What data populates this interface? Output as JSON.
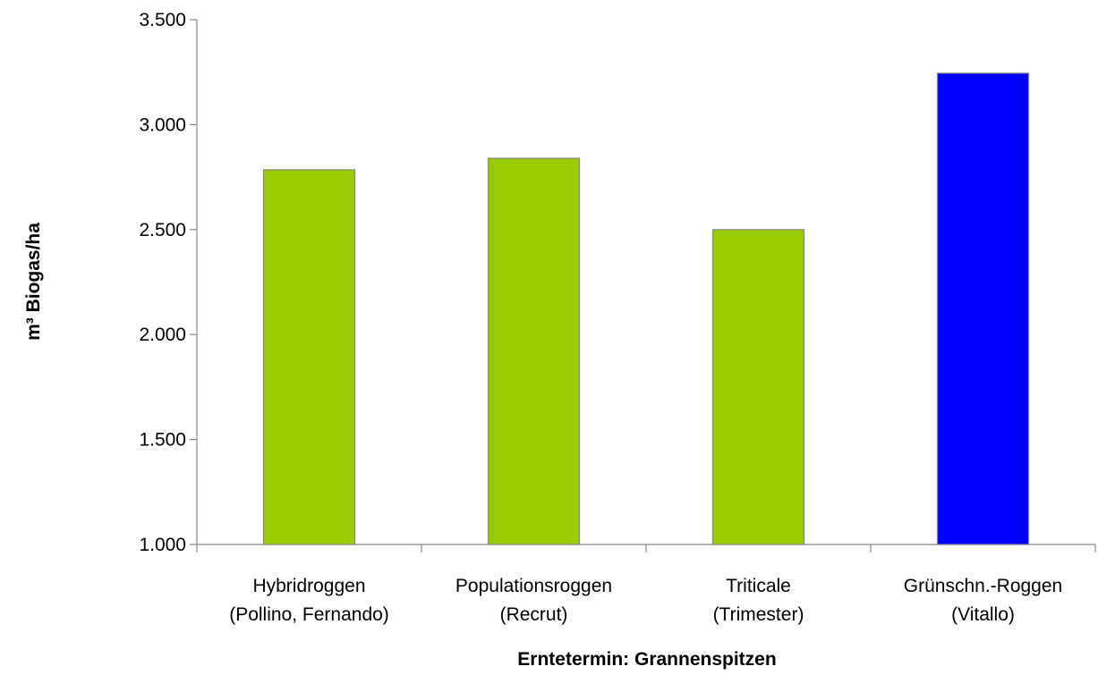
{
  "chart_data": {
    "type": "bar",
    "title": "",
    "xlabel": "Erntetermin: Grannenspitzen",
    "ylabel": "m³ Biogas/ha",
    "ylim": [
      1000,
      3500
    ],
    "yticks": [
      1000,
      1500,
      2000,
      2500,
      3000,
      3500
    ],
    "ytick_labels": [
      "1.000",
      "1.500",
      "2.000",
      "2.500",
      "3.000",
      "3.500"
    ],
    "grid": false,
    "legend": "none",
    "categories": [
      [
        "Hybridroggen",
        "(Pollino, Fernando)"
      ],
      [
        "Populationsroggen",
        "(Recrut)"
      ],
      [
        "Triticale",
        "(Trimester)"
      ],
      [
        "Grünschn.-Roggen",
        "(Vitallo)"
      ]
    ],
    "values": [
      2785,
      2840,
      2500,
      3245
    ],
    "colors": [
      "#99cc00",
      "#99cc00",
      "#99cc00",
      "#0000ff"
    ]
  }
}
